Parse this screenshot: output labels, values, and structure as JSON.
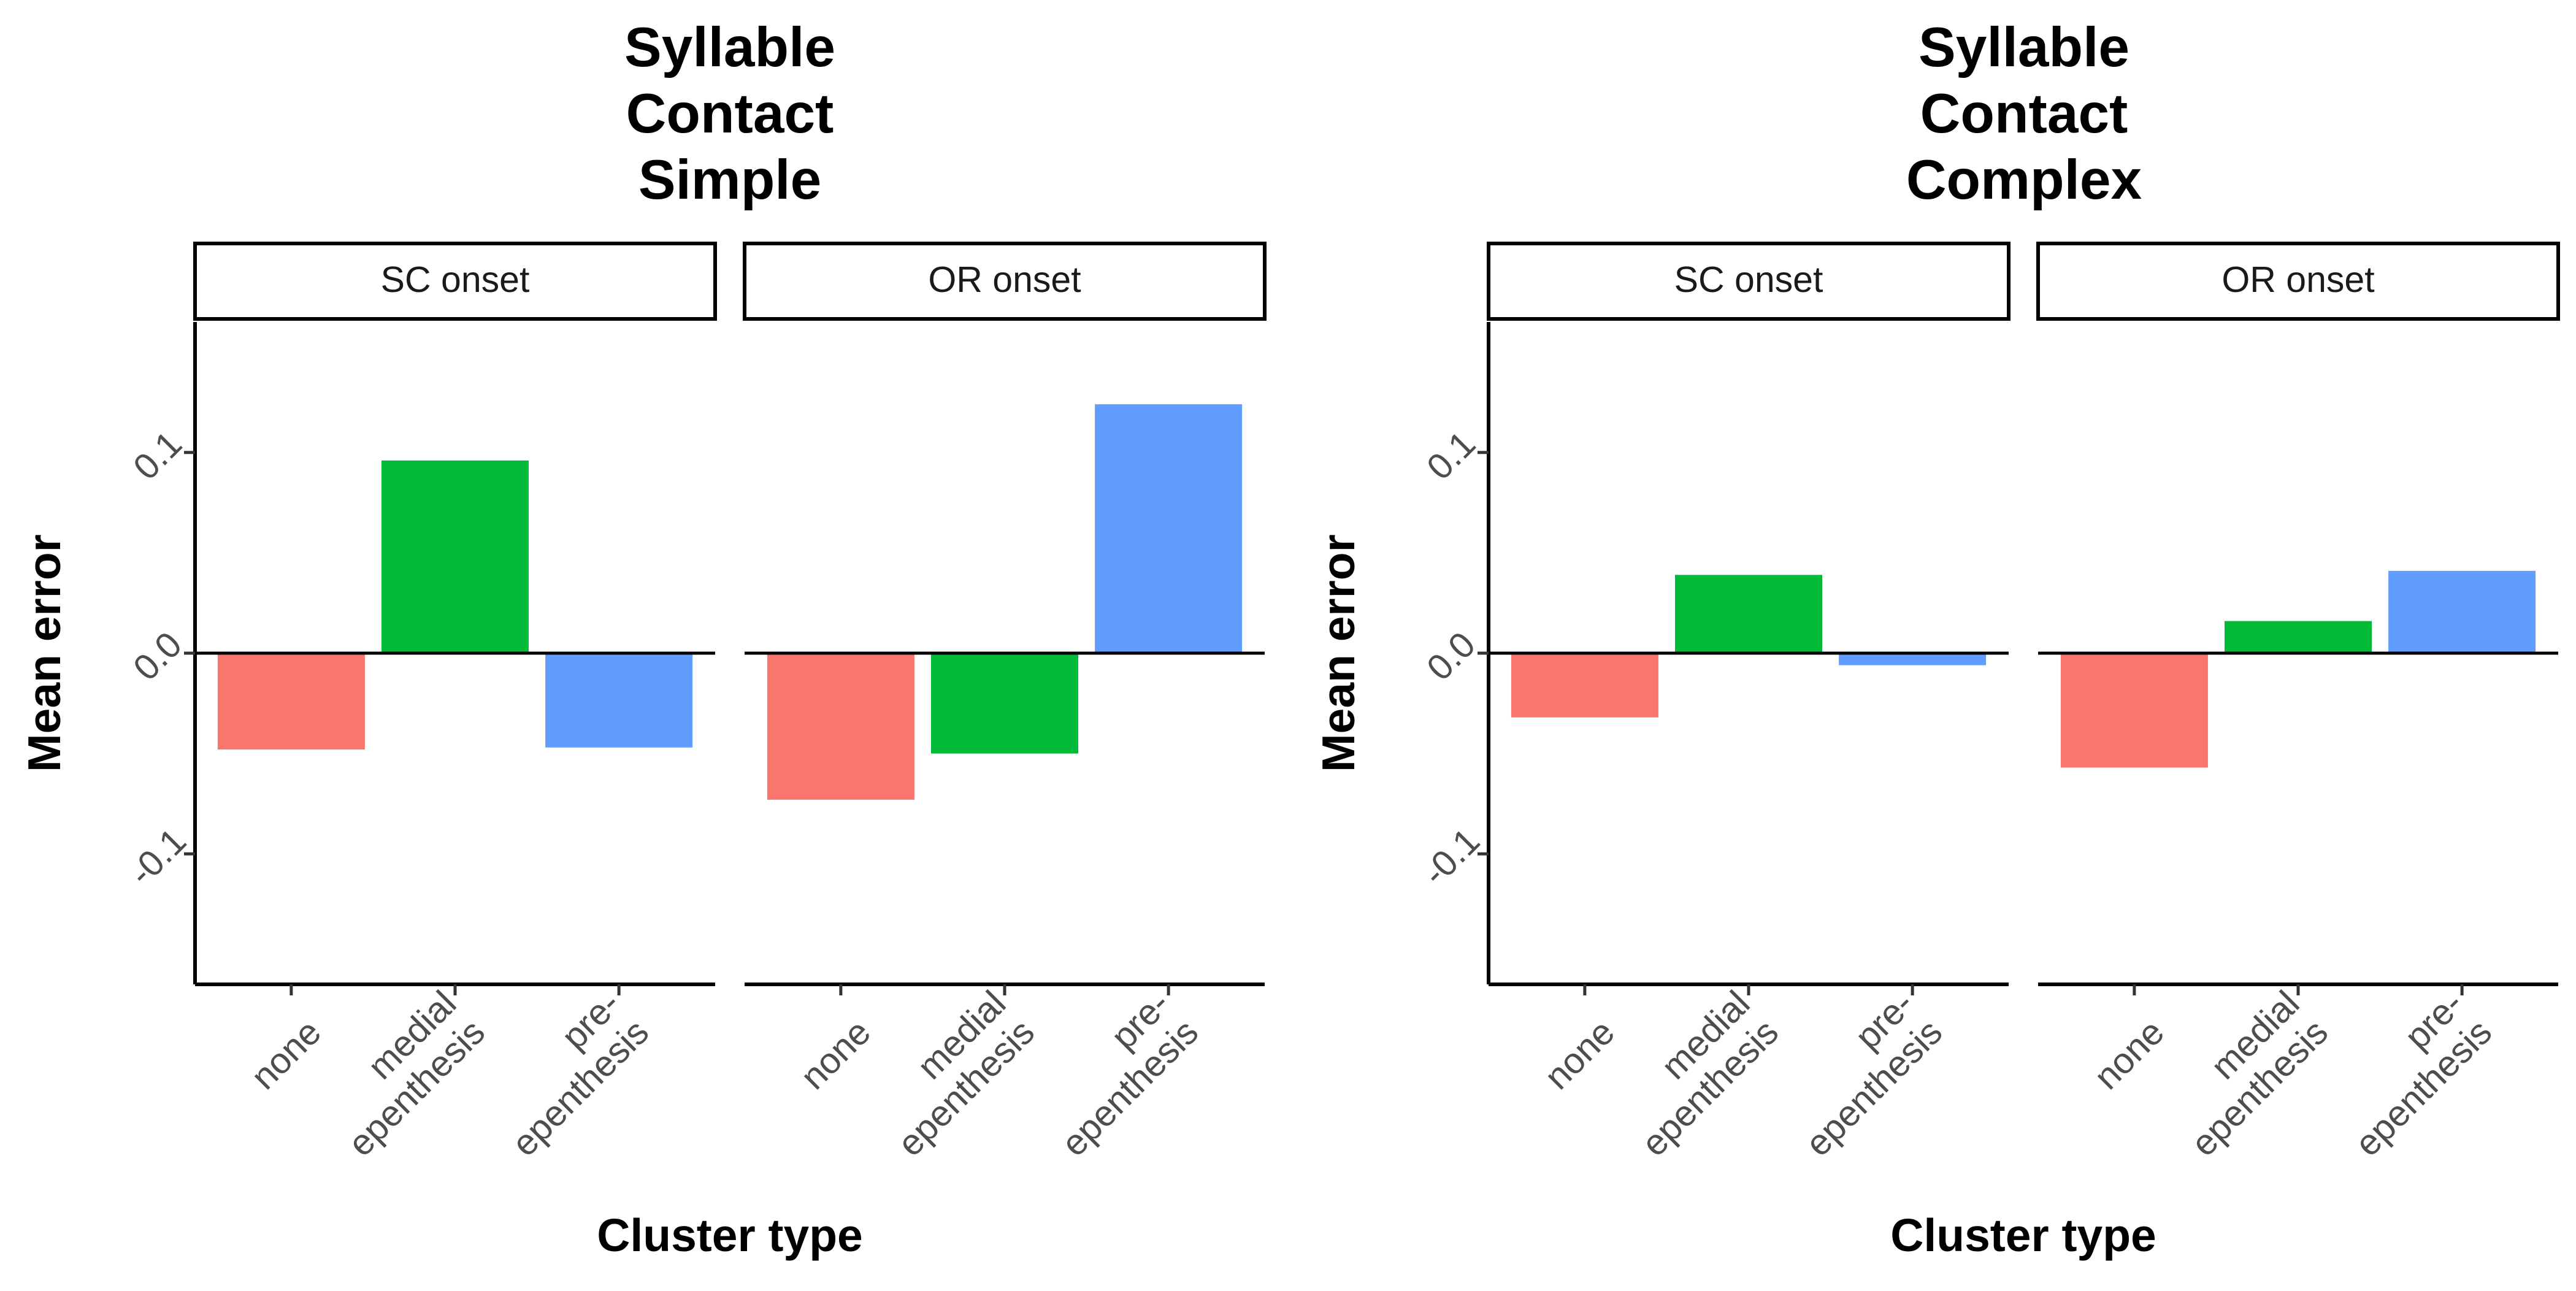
{
  "chart_data": [
    {
      "type": "bar",
      "title": [
        "Syllable",
        "Contact",
        "Simple"
      ],
      "xlabel": "Cluster type",
      "ylabel": "Mean error",
      "ylim": [
        -0.165,
        0.165
      ],
      "yticks": [
        {
          "value": -0.1,
          "label": "-0.1"
        },
        {
          "value": 0.0,
          "label": "0.0"
        },
        {
          "value": 0.1,
          "label": "0.1"
        }
      ],
      "zero_line": true,
      "grid": false,
      "legend": "none",
      "categories": [
        [
          "none"
        ],
        [
          "medial",
          "epenthesis"
        ],
        [
          "pre-",
          "epenthesis"
        ]
      ],
      "category_colors": [
        "#F8766D",
        "#00BA38",
        "#619CFF"
      ],
      "facets": [
        {
          "label": "SC onset",
          "values": [
            -0.048,
            0.096,
            -0.047
          ]
        },
        {
          "label": "OR onset",
          "values": [
            -0.073,
            -0.05,
            0.124
          ]
        }
      ]
    },
    {
      "type": "bar",
      "title": [
        "Syllable",
        "Contact",
        "Complex"
      ],
      "xlabel": "Cluster type",
      "ylabel": "Mean error",
      "ylim": [
        -0.165,
        0.165
      ],
      "yticks": [
        {
          "value": -0.1,
          "label": "-0.1"
        },
        {
          "value": 0.0,
          "label": "0.0"
        },
        {
          "value": 0.1,
          "label": "0.1"
        }
      ],
      "zero_line": true,
      "grid": false,
      "legend": "none",
      "categories": [
        [
          "none"
        ],
        [
          "medial",
          "epenthesis"
        ],
        [
          "pre-",
          "epenthesis"
        ]
      ],
      "category_colors": [
        "#F8766D",
        "#00BA38",
        "#619CFF"
      ],
      "facets": [
        {
          "label": "SC onset",
          "values": [
            -0.032,
            0.039,
            -0.006
          ]
        },
        {
          "label": "OR onset",
          "values": [
            -0.057,
            0.016,
            0.041
          ]
        }
      ]
    }
  ]
}
